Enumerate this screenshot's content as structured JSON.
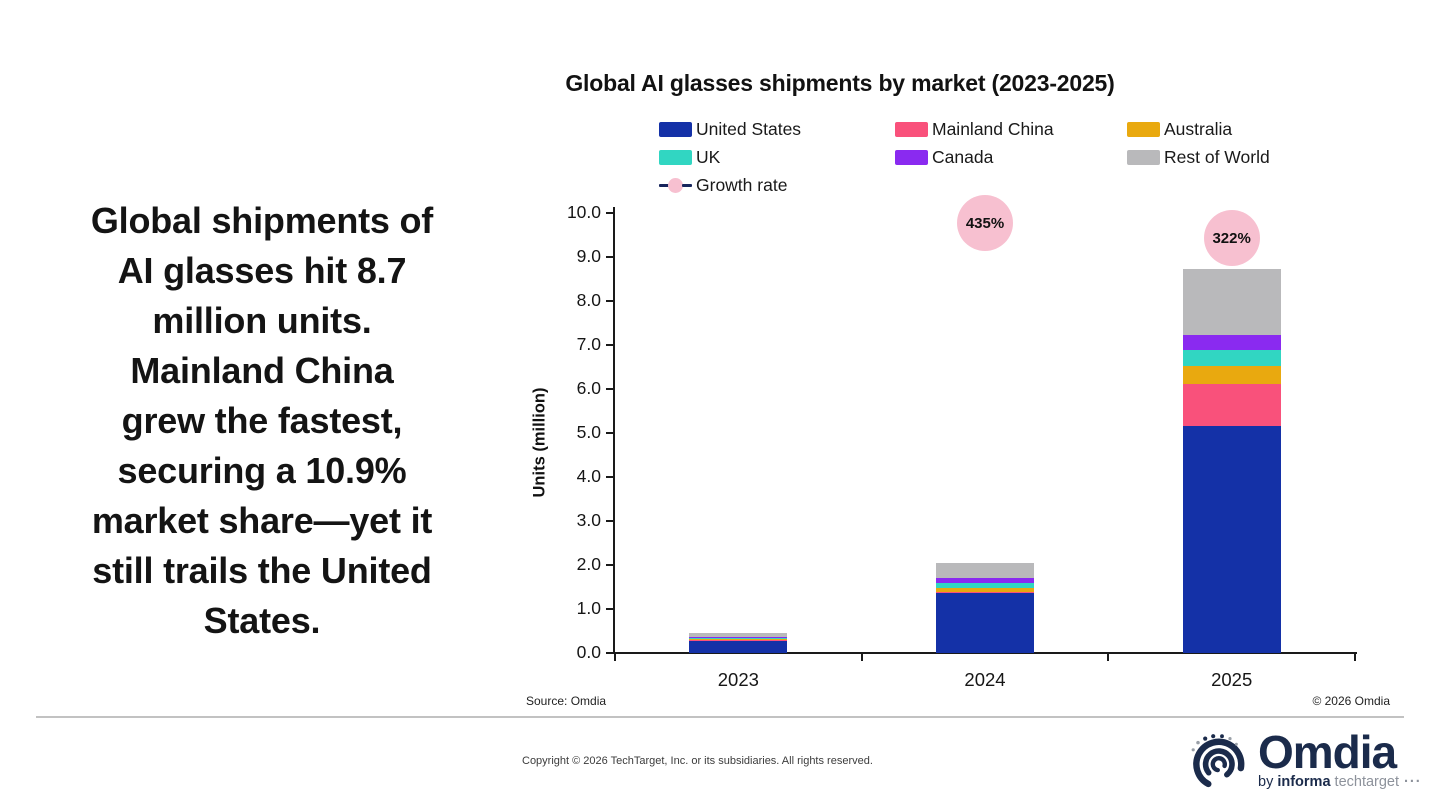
{
  "summary_text": "Global shipments of\nAI glasses hit 8.7\nmillion units.\nMainland China\ngrew the fastest,\nsecuring a 10.9%\nmarket share—yet it\nstill trails the United\nStates.",
  "chart_data": {
    "type": "bar",
    "stacked": true,
    "title": "Global AI glasses shipments by market (2023-2025)",
    "ylabel": "Units (million)",
    "ylim": [
      0,
      10
    ],
    "ytick_step": 1.0,
    "grid": false,
    "legend_position": "top",
    "categories": [
      "2023",
      "2024",
      "2025"
    ],
    "series": [
      {
        "name": "United States",
        "color": "#1431a7",
        "values": [
          0.28,
          1.36,
          5.15
        ]
      },
      {
        "name": "Mainland China",
        "color": "#f9517b",
        "values": [
          0.01,
          0.03,
          0.95
        ]
      },
      {
        "name": "Australia",
        "color": "#e9a90f",
        "values": [
          0.01,
          0.09,
          0.4
        ]
      },
      {
        "name": "UK",
        "color": "#31d6c2",
        "values": [
          0.01,
          0.11,
          0.37
        ]
      },
      {
        "name": "Canada",
        "color": "#8a2af0",
        "values": [
          0.01,
          0.11,
          0.33
        ]
      },
      {
        "name": "Rest of World",
        "color": "#b9b9bb",
        "values": [
          0.08,
          0.35,
          1.5
        ]
      }
    ],
    "growth_rate": {
      "name": "Growth rate",
      "marker_color": "#f7c0d0",
      "dash_color": "#17255c",
      "points": [
        {
          "category": "2024",
          "label": "435%",
          "value_pct": 435
        },
        {
          "category": "2025",
          "label": "322%",
          "value_pct": 322
        }
      ]
    }
  },
  "footnotes": {
    "source": "Source: Omdia",
    "chart_copyright": "© 2026 Omdia",
    "page_copyright": "Copyright © 2026 TechTarget, Inc. or its subsidiaries. All rights reserved."
  },
  "logo": {
    "word": "Omdia",
    "tagline_by": "by ",
    "tagline_informa": "informa",
    "tagline_techtarget": " techtarget",
    "tagline_dots": " ···",
    "navy": "#1b2b4b",
    "gray": "#8d929b"
  }
}
